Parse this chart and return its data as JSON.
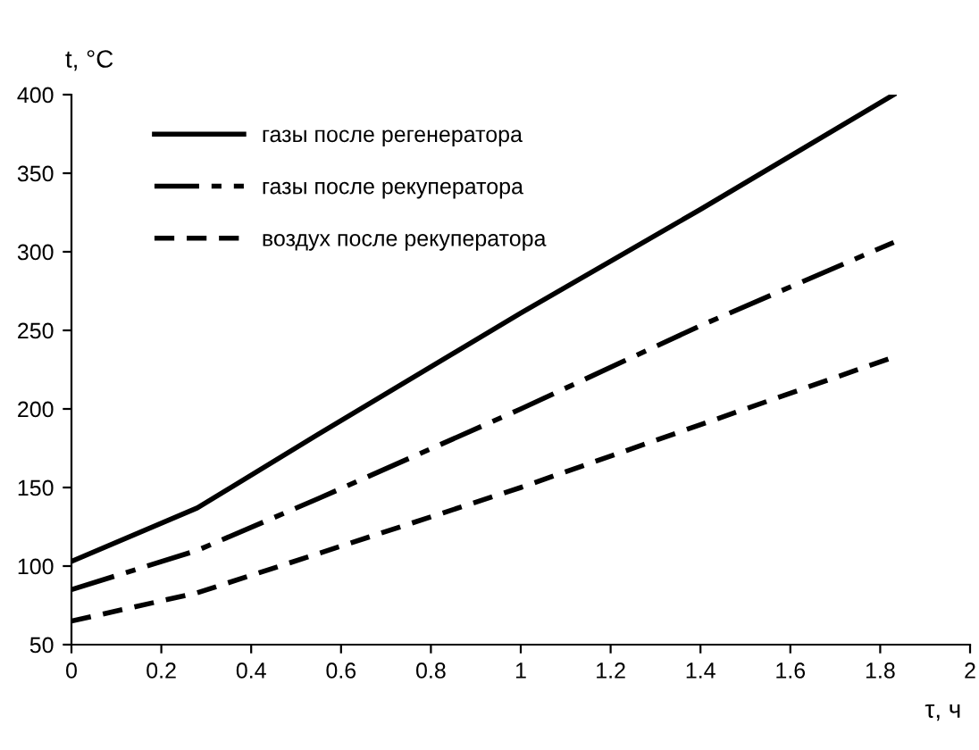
{
  "chart_data": {
    "type": "line",
    "xlabel": "τ, ч",
    "ylabel": "t, °C",
    "xlim": [
      0,
      2
    ],
    "xticks": [
      0,
      0.2,
      0.4,
      0.6,
      0.8,
      1,
      1.2,
      1.4,
      1.6,
      1.8,
      2
    ],
    "ylim": [
      50,
      400
    ],
    "yticks": [
      50,
      100,
      150,
      200,
      250,
      300,
      350,
      400
    ],
    "grid": false,
    "legend": "top left",
    "marker": "none",
    "series": [
      {
        "name": "газы после регенератора",
        "color": "#000000",
        "line_style": "solid",
        "x": [
          0,
          0.28,
          0.55,
          1.0,
          1.4,
          1.83
        ],
        "values": [
          103,
          137,
          184,
          261,
          327,
          400
        ]
      },
      {
        "name": "газы после рекуператора",
        "color": "#000000",
        "line_style": "dashdot",
        "x": [
          0,
          0.28,
          0.55,
          1.0,
          1.4,
          1.83
        ],
        "values": [
          85,
          110,
          143,
          200,
          253,
          306
        ]
      },
      {
        "name": "воздух после рекуператора",
        "color": "#000000",
        "line_style": "dashed",
        "x": [
          0,
          0.28,
          0.55,
          1.0,
          1.4,
          1.83
        ],
        "values": [
          65,
          83,
          108,
          150,
          190,
          233
        ]
      }
    ]
  }
}
